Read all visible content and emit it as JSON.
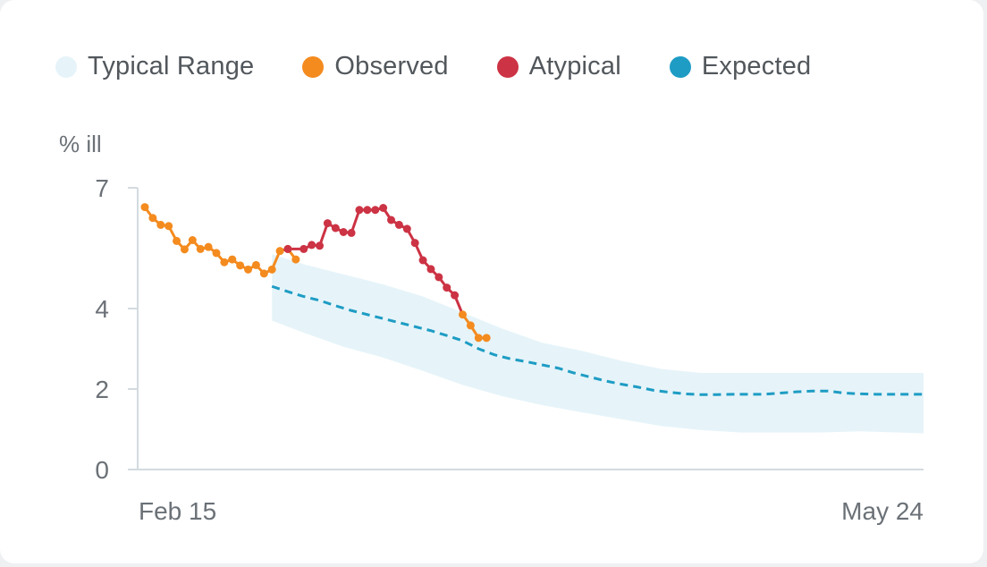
{
  "chart_data": {
    "type": "line",
    "ylabel": "% ill",
    "ylim": [
      0,
      7
    ],
    "y_ticks": [
      "0",
      "2",
      "4",
      "7"
    ],
    "x_tick_labels": [
      "Feb 15",
      "May 24"
    ],
    "legend": [
      {
        "label": "Typical Range",
        "color": "#e6f4f9"
      },
      {
        "label": "Observed",
        "color": "#f48b1f"
      },
      {
        "label": "Atypical",
        "color": "#cc3344"
      },
      {
        "label": "Expected",
        "color": "#1e9cc4"
      }
    ],
    "series": [
      {
        "name": "Observed",
        "color": "#f48b1f",
        "values": [
          [
            0,
            6.52
          ],
          [
            1,
            6.25
          ],
          [
            2,
            6.08
          ],
          [
            3,
            6.05
          ],
          [
            4,
            5.68
          ],
          [
            5,
            5.47
          ],
          [
            6,
            5.7
          ],
          [
            7,
            5.48
          ],
          [
            8,
            5.53
          ],
          [
            9,
            5.38
          ],
          [
            10,
            5.15
          ],
          [
            11,
            5.22
          ],
          [
            12,
            5.07
          ],
          [
            13,
            4.97
          ],
          [
            14,
            5.08
          ],
          [
            15,
            4.87
          ],
          [
            16,
            4.97
          ],
          [
            17,
            5.43
          ],
          [
            18,
            5.48
          ],
          [
            19,
            5.22
          ],
          [
            40,
            3.85
          ],
          [
            41,
            3.58
          ],
          [
            42,
            3.27
          ],
          [
            43,
            3.27
          ]
        ]
      },
      {
        "name": "Atypical",
        "color": "#cc3344",
        "values": [
          [
            17,
            5.43
          ],
          [
            18,
            5.48
          ],
          [
            20,
            5.48
          ],
          [
            21,
            5.58
          ],
          [
            22,
            5.56
          ],
          [
            23,
            6.12
          ],
          [
            24,
            6.0
          ],
          [
            25,
            5.9
          ],
          [
            26,
            5.88
          ],
          [
            27,
            6.45
          ],
          [
            28,
            6.45
          ],
          [
            29,
            6.45
          ],
          [
            30,
            6.5
          ],
          [
            31,
            6.2
          ],
          [
            32,
            6.08
          ],
          [
            33,
            5.98
          ],
          [
            34,
            5.63
          ],
          [
            35,
            5.2
          ],
          [
            36,
            4.98
          ],
          [
            37,
            4.78
          ],
          [
            38,
            4.52
          ],
          [
            39,
            4.33
          ],
          [
            40,
            3.85
          ]
        ]
      },
      {
        "name": "Expected",
        "color": "#1e9cc4",
        "values": [
          [
            16,
            4.55
          ],
          [
            18,
            4.42
          ],
          [
            20,
            4.3
          ],
          [
            22,
            4.2
          ],
          [
            24,
            4.07
          ],
          [
            26,
            3.95
          ],
          [
            28,
            3.85
          ],
          [
            30,
            3.75
          ],
          [
            32,
            3.65
          ],
          [
            34,
            3.55
          ],
          [
            36,
            3.45
          ],
          [
            38,
            3.33
          ],
          [
            40,
            3.2
          ],
          [
            42,
            3.0
          ],
          [
            44,
            2.85
          ],
          [
            46,
            2.75
          ],
          [
            48,
            2.68
          ],
          [
            50,
            2.6
          ],
          [
            52,
            2.52
          ],
          [
            54,
            2.4
          ],
          [
            56,
            2.3
          ],
          [
            58,
            2.2
          ],
          [
            60,
            2.12
          ],
          [
            62,
            2.05
          ],
          [
            64,
            1.97
          ],
          [
            66,
            1.92
          ],
          [
            68,
            1.88
          ],
          [
            70,
            1.86
          ],
          [
            72,
            1.86
          ],
          [
            74,
            1.87
          ],
          [
            76,
            1.87
          ],
          [
            78,
            1.87
          ],
          [
            80,
            1.9
          ],
          [
            82,
            1.93
          ],
          [
            84,
            1.95
          ],
          [
            86,
            1.95
          ],
          [
            88,
            1.9
          ],
          [
            90,
            1.88
          ],
          [
            92,
            1.87
          ],
          [
            94,
            1.87
          ],
          [
            96,
            1.87
          ],
          [
            98,
            1.87
          ]
        ]
      }
    ],
    "range": {
      "name": "Typical Range",
      "color": "#e6f4f9",
      "x": [
        16,
        20,
        25,
        30,
        35,
        40,
        45,
        50,
        55,
        60,
        65,
        70,
        75,
        80,
        85,
        90,
        98
      ],
      "upper": [
        5.35,
        5.1,
        4.85,
        4.6,
        4.3,
        3.9,
        3.5,
        3.15,
        2.95,
        2.7,
        2.5,
        2.4,
        2.4,
        2.4,
        2.4,
        2.4,
        2.4
      ],
      "lower": [
        3.7,
        3.4,
        3.05,
        2.78,
        2.45,
        2.1,
        1.82,
        1.6,
        1.42,
        1.25,
        1.08,
        0.98,
        0.92,
        0.92,
        0.92,
        0.95,
        0.9
      ]
    },
    "x_range": [
      0,
      98
    ],
    "grid": false
  }
}
